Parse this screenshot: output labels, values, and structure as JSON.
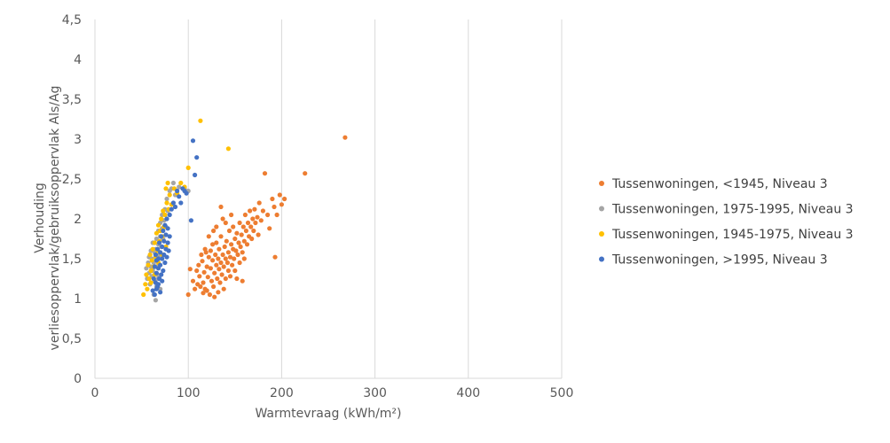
{
  "chart_data": {
    "type": "scatter",
    "xlabel": "Warmtevraag (kWh/m²)",
    "ylabel_line1": "Verhouding",
    "ylabel_line2": "verliesoppervlak/gebruiksoppervlak Als/Ag",
    "xlim": [
      0,
      500
    ],
    "ylim": [
      0,
      4.5
    ],
    "xticks": [
      "0",
      "100",
      "200",
      "300",
      "400",
      "500"
    ],
    "yticks": [
      "0",
      "0,5",
      "1",
      "1,5",
      "2",
      "2,5",
      "3",
      "3,5",
      "4",
      "4,5"
    ],
    "grid": "vertical",
    "legend_position": "right",
    "series": [
      {
        "name": "Tussenwoningen, <1945, Niveau 3",
        "color": "#ED7D31",
        "points": [
          [
            100,
            1.05
          ],
          [
            102,
            1.37
          ],
          [
            105,
            1.22
          ],
          [
            107,
            1.12
          ],
          [
            109,
            1.35
          ],
          [
            111,
            1.42
          ],
          [
            112,
            1.28
          ],
          [
            113,
            1.15
          ],
          [
            114,
            1.55
          ],
          [
            115,
            1.47
          ],
          [
            116,
            1.2
          ],
          [
            117,
            1.33
          ],
          [
            118,
            1.12
          ],
          [
            119,
            1.58
          ],
          [
            120,
            1.4
          ],
          [
            120,
            1.1
          ],
          [
            121,
            1.27
          ],
          [
            122,
            1.52
          ],
          [
            123,
            1.05
          ],
          [
            124,
            1.38
          ],
          [
            124,
            1.6
          ],
          [
            125,
            1.22
          ],
          [
            126,
            1.48
          ],
          [
            127,
            1.85
          ],
          [
            127,
            1.15
          ],
          [
            128,
            1.32
          ],
          [
            129,
            1.55
          ],
          [
            130,
            1.42
          ],
          [
            130,
            1.7
          ],
          [
            131,
            1.25
          ],
          [
            132,
            1.5
          ],
          [
            133,
            1.37
          ],
          [
            133,
            1.62
          ],
          [
            134,
            1.2
          ],
          [
            135,
            1.45
          ],
          [
            135,
            1.78
          ],
          [
            136,
            1.3
          ],
          [
            137,
            1.55
          ],
          [
            137,
            2.0
          ],
          [
            138,
            1.4
          ],
          [
            139,
            1.65
          ],
          [
            140,
            1.5
          ],
          [
            140,
            1.25
          ],
          [
            141,
            1.72
          ],
          [
            142,
            1.45
          ],
          [
            143,
            1.58
          ],
          [
            143,
            1.35
          ],
          [
            144,
            1.85
          ],
          [
            145,
            1.52
          ],
          [
            146,
            1.68
          ],
          [
            147,
            1.42
          ],
          [
            148,
            1.62
          ],
          [
            148,
            1.9
          ],
          [
            149,
            1.5
          ],
          [
            150,
            1.75
          ],
          [
            150,
            1.35
          ],
          [
            151,
            1.6
          ],
          [
            152,
            1.82
          ],
          [
            153,
            1.55
          ],
          [
            154,
            1.7
          ],
          [
            155,
            1.45
          ],
          [
            155,
            1.95
          ],
          [
            156,
            1.65
          ],
          [
            157,
            1.8
          ],
          [
            158,
            1.58
          ],
          [
            159,
            1.9
          ],
          [
            160,
            1.72
          ],
          [
            160,
            1.5
          ],
          [
            161,
            2.05
          ],
          [
            162,
            1.85
          ],
          [
            163,
            1.68
          ],
          [
            164,
            1.95
          ],
          [
            165,
            1.78
          ],
          [
            166,
            2.1
          ],
          [
            167,
            1.9
          ],
          [
            168,
            1.75
          ],
          [
            169,
            2.0
          ],
          [
            170,
            1.85
          ],
          [
            171,
            2.12
          ],
          [
            172,
            1.95
          ],
          [
            174,
            2.02
          ],
          [
            175,
            1.8
          ],
          [
            176,
            2.2
          ],
          [
            178,
            1.98
          ],
          [
            180,
            2.1
          ],
          [
            182,
            2.57
          ],
          [
            185,
            2.05
          ],
          [
            187,
            1.88
          ],
          [
            190,
            2.25
          ],
          [
            192,
            2.15
          ],
          [
            193,
            1.52
          ],
          [
            195,
            2.05
          ],
          [
            198,
            2.3
          ],
          [
            200,
            2.18
          ],
          [
            203,
            2.25
          ],
          [
            225,
            2.57
          ],
          [
            268,
            3.02
          ],
          [
            128,
            1.02
          ],
          [
            132,
            1.08
          ],
          [
            138,
            1.12
          ],
          [
            145,
            1.28
          ],
          [
            152,
            1.25
          ],
          [
            158,
            1.22
          ],
          [
            118,
            1.62
          ],
          [
            122,
            1.78
          ],
          [
            126,
            1.68
          ],
          [
            130,
            1.9
          ],
          [
            135,
            2.15
          ],
          [
            140,
            1.95
          ],
          [
            146,
            2.05
          ],
          [
            110,
            1.18
          ],
          [
            116,
            1.07
          ]
        ]
      },
      {
        "name": "Tussenwoningen, 1975-1995, Niveau 3",
        "color": "#A5A5A5",
        "points": [
          [
            55,
            1.38
          ],
          [
            56,
            1.25
          ],
          [
            57,
            1.45
          ],
          [
            58,
            1.32
          ],
          [
            58,
            1.52
          ],
          [
            59,
            1.18
          ],
          [
            60,
            1.4
          ],
          [
            60,
            1.6
          ],
          [
            61,
            1.28
          ],
          [
            61,
            1.5
          ],
          [
            62,
            1.35
          ],
          [
            62,
            1.7
          ],
          [
            63,
            1.05
          ],
          [
            63,
            1.45
          ],
          [
            64,
            1.58
          ],
          [
            64,
            1.22
          ],
          [
            65,
            0.98
          ],
          [
            65,
            1.62
          ],
          [
            66,
            1.4
          ],
          [
            66,
            1.75
          ],
          [
            67,
            1.5
          ],
          [
            67,
            1.3
          ],
          [
            68,
            1.68
          ],
          [
            68,
            1.85
          ],
          [
            69,
            1.55
          ],
          [
            70,
            1.78
          ],
          [
            70,
            1.95
          ],
          [
            71,
            1.65
          ],
          [
            72,
            1.88
          ],
          [
            72,
            2.05
          ],
          [
            73,
            1.75
          ],
          [
            74,
            1.98
          ],
          [
            75,
            2.12
          ],
          [
            76,
            1.9
          ],
          [
            77,
            2.25
          ],
          [
            78,
            2.1
          ],
          [
            80,
            2.35
          ],
          [
            82,
            2.38
          ],
          [
            84,
            2.45
          ],
          [
            86,
            2.3
          ],
          [
            90,
            2.4
          ],
          [
            96,
            2.38
          ],
          [
            100,
            2.35
          ],
          [
            66,
            1.15
          ],
          [
            68,
            1.25
          ],
          [
            70,
            1.12
          ]
        ]
      },
      {
        "name": "Tussenwoningen, 1945-1975, Niveau 3",
        "color": "#FFC000",
        "points": [
          [
            52,
            1.05
          ],
          [
            54,
            1.18
          ],
          [
            55,
            1.3
          ],
          [
            56,
            1.12
          ],
          [
            57,
            1.42
          ],
          [
            58,
            1.25
          ],
          [
            59,
            1.55
          ],
          [
            60,
            1.35
          ],
          [
            61,
            1.48
          ],
          [
            62,
            1.62
          ],
          [
            63,
            1.4
          ],
          [
            64,
            1.7
          ],
          [
            65,
            1.52
          ],
          [
            66,
            1.82
          ],
          [
            67,
            1.6
          ],
          [
            68,
            1.92
          ],
          [
            69,
            1.72
          ],
          [
            70,
            1.85
          ],
          [
            71,
            2.0
          ],
          [
            72,
            1.78
          ],
          [
            73,
            2.1
          ],
          [
            74,
            1.9
          ],
          [
            75,
            2.05
          ],
          [
            76,
            2.38
          ],
          [
            77,
            2.2
          ],
          [
            78,
            2.45
          ],
          [
            79,
            2.12
          ],
          [
            80,
            2.3
          ],
          [
            82,
            2.18
          ],
          [
            85,
            2.38
          ],
          [
            88,
            2.32
          ],
          [
            92,
            2.45
          ],
          [
            96,
            2.4
          ],
          [
            100,
            2.64
          ],
          [
            113,
            3.23
          ],
          [
            143,
            2.88
          ],
          [
            60,
            1.2
          ],
          [
            64,
            1.3
          ],
          [
            68,
            1.45
          ],
          [
            72,
            1.55
          ],
          [
            76,
            1.65
          ]
        ]
      },
      {
        "name": "Tussenwoningen, >1995, Niveau 3",
        "color": "#4472C4",
        "points": [
          [
            62,
            1.1
          ],
          [
            63,
            1.25
          ],
          [
            64,
            1.4
          ],
          [
            64,
            1.05
          ],
          [
            65,
            1.55
          ],
          [
            65,
            1.2
          ],
          [
            66,
            1.32
          ],
          [
            66,
            1.48
          ],
          [
            67,
            1.15
          ],
          [
            67,
            1.62
          ],
          [
            68,
            1.38
          ],
          [
            68,
            1.5
          ],
          [
            69,
            1.25
          ],
          [
            69,
            1.7
          ],
          [
            70,
            1.42
          ],
          [
            70,
            1.58
          ],
          [
            71,
            1.3
          ],
          [
            71,
            1.78
          ],
          [
            72,
            1.5
          ],
          [
            72,
            1.65
          ],
          [
            73,
            1.35
          ],
          [
            73,
            1.85
          ],
          [
            74,
            1.55
          ],
          [
            74,
            1.72
          ],
          [
            75,
            1.45
          ],
          [
            75,
            1.92
          ],
          [
            76,
            1.62
          ],
          [
            76,
            1.8
          ],
          [
            77,
            1.52
          ],
          [
            77,
            2.0
          ],
          [
            78,
            1.7
          ],
          [
            78,
            1.88
          ],
          [
            79,
            1.6
          ],
          [
            80,
            2.05
          ],
          [
            80,
            1.78
          ],
          [
            82,
            2.12
          ],
          [
            84,
            2.2
          ],
          [
            86,
            2.15
          ],
          [
            88,
            2.35
          ],
          [
            90,
            2.28
          ],
          [
            92,
            2.2
          ],
          [
            94,
            2.38
          ],
          [
            96,
            2.35
          ],
          [
            98,
            2.32
          ],
          [
            103,
            1.98
          ],
          [
            105,
            2.98
          ],
          [
            107,
            2.55
          ],
          [
            109,
            2.77
          ],
          [
            66,
            1.12
          ],
          [
            68,
            1.18
          ],
          [
            70,
            1.08
          ],
          [
            72,
            1.22
          ]
        ]
      }
    ]
  }
}
